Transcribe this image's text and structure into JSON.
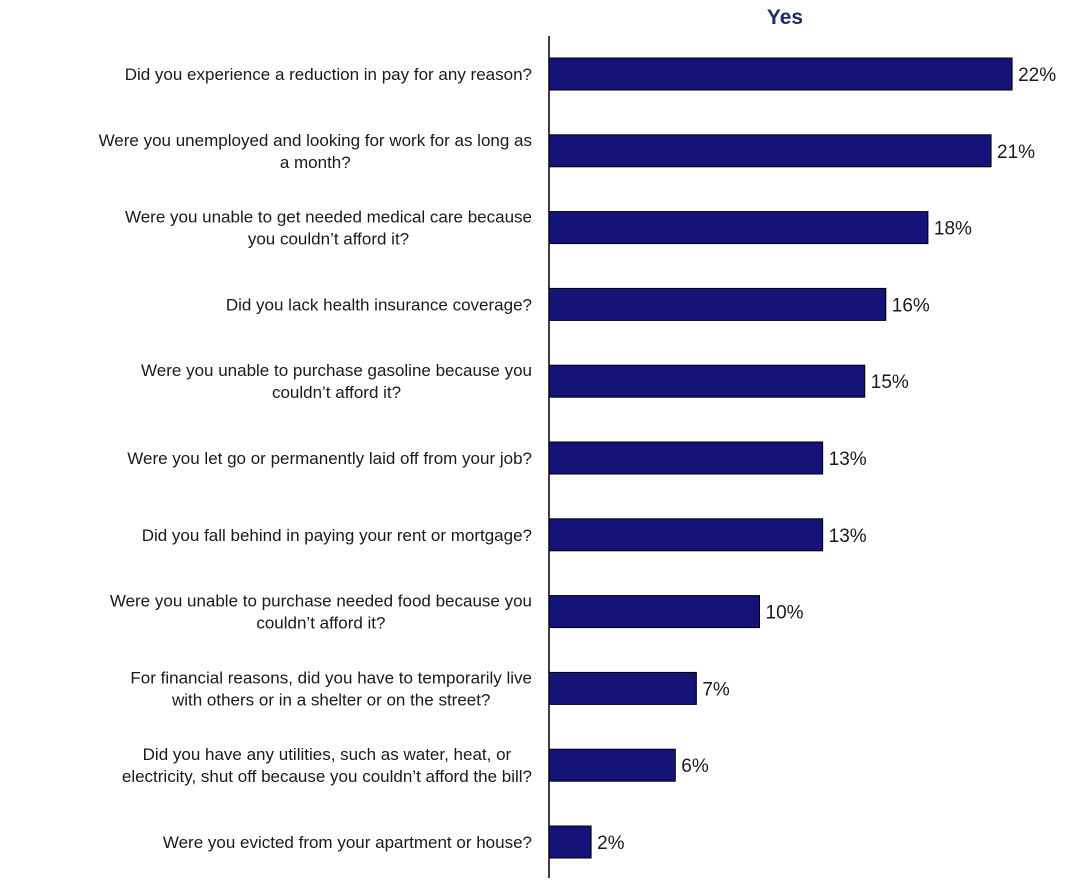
{
  "chart_data": {
    "type": "bar",
    "orientation": "horizontal",
    "series": [
      {
        "name": "Yes",
        "values": [
          22,
          21,
          18,
          16,
          15,
          13,
          13,
          10,
          7,
          6,
          2
        ]
      }
    ],
    "categories": [
      "Did you experience a reduction in pay for any reason?",
      "Were you unemployed and looking for work for as long as a month?",
      "Were you unable to get needed medical care because you couldn’t afford it?",
      "Did you lack health insurance coverage?",
      "Were you unable to purchase gasoline because you couldn’t afford it?",
      "Were you let go or permanently laid off from your job?",
      "Did you fall behind in paying your rent or mortgage?",
      "Were you unable to purchase needed food because you couldn’t afford it?",
      "For financial reasons, did you have to temporarily live with others or in a shelter or on the street?",
      "Did you have any utilities, such as water, heat, or electricity, shut off because you couldn’t afford the bill?",
      "Were you evicted from your apartment or house?"
    ],
    "category_lines": [
      [
        "Did you experience a reduction in pay for any reason?"
      ],
      [
        "Were you unemployed and looking for work for as long as",
        "a month?"
      ],
      [
        "Were you unable to get needed medical care because",
        "you couldn’t afford it?"
      ],
      [
        "Did you lack health insurance coverage?"
      ],
      [
        "Were you unable to purchase gasoline because you",
        "couldn’t afford it?"
      ],
      [
        "Were you let go or permanently laid off from your job?"
      ],
      [
        "Did you fall behind in paying your rent or mortgage?"
      ],
      [
        "Were you unable to purchase needed food because you",
        "couldn’t afford it?"
      ],
      [
        "For financial reasons, did you have to temporarily live",
        "with others or in a shelter or on the street?"
      ],
      [
        "Did you have any utilities, such as water, heat, or",
        "electricity, shut off because you couldn’t afford the bill?"
      ],
      [
        "Were you evicted from your apartment or house?"
      ]
    ],
    "value_labels": [
      "22%",
      "21%",
      "18%",
      "16%",
      "15%",
      "13%",
      "13%",
      "10%",
      "7%",
      "6%",
      "2%"
    ],
    "unit": "%",
    "xlim": [
      0,
      22
    ],
    "grid": false,
    "legend": "none",
    "colors": {
      "bar_fill": "#13137a",
      "bar_stroke": "#000000",
      "title": "#1f2a6b",
      "axis": "#000000",
      "text": "#1a1a1a"
    }
  }
}
